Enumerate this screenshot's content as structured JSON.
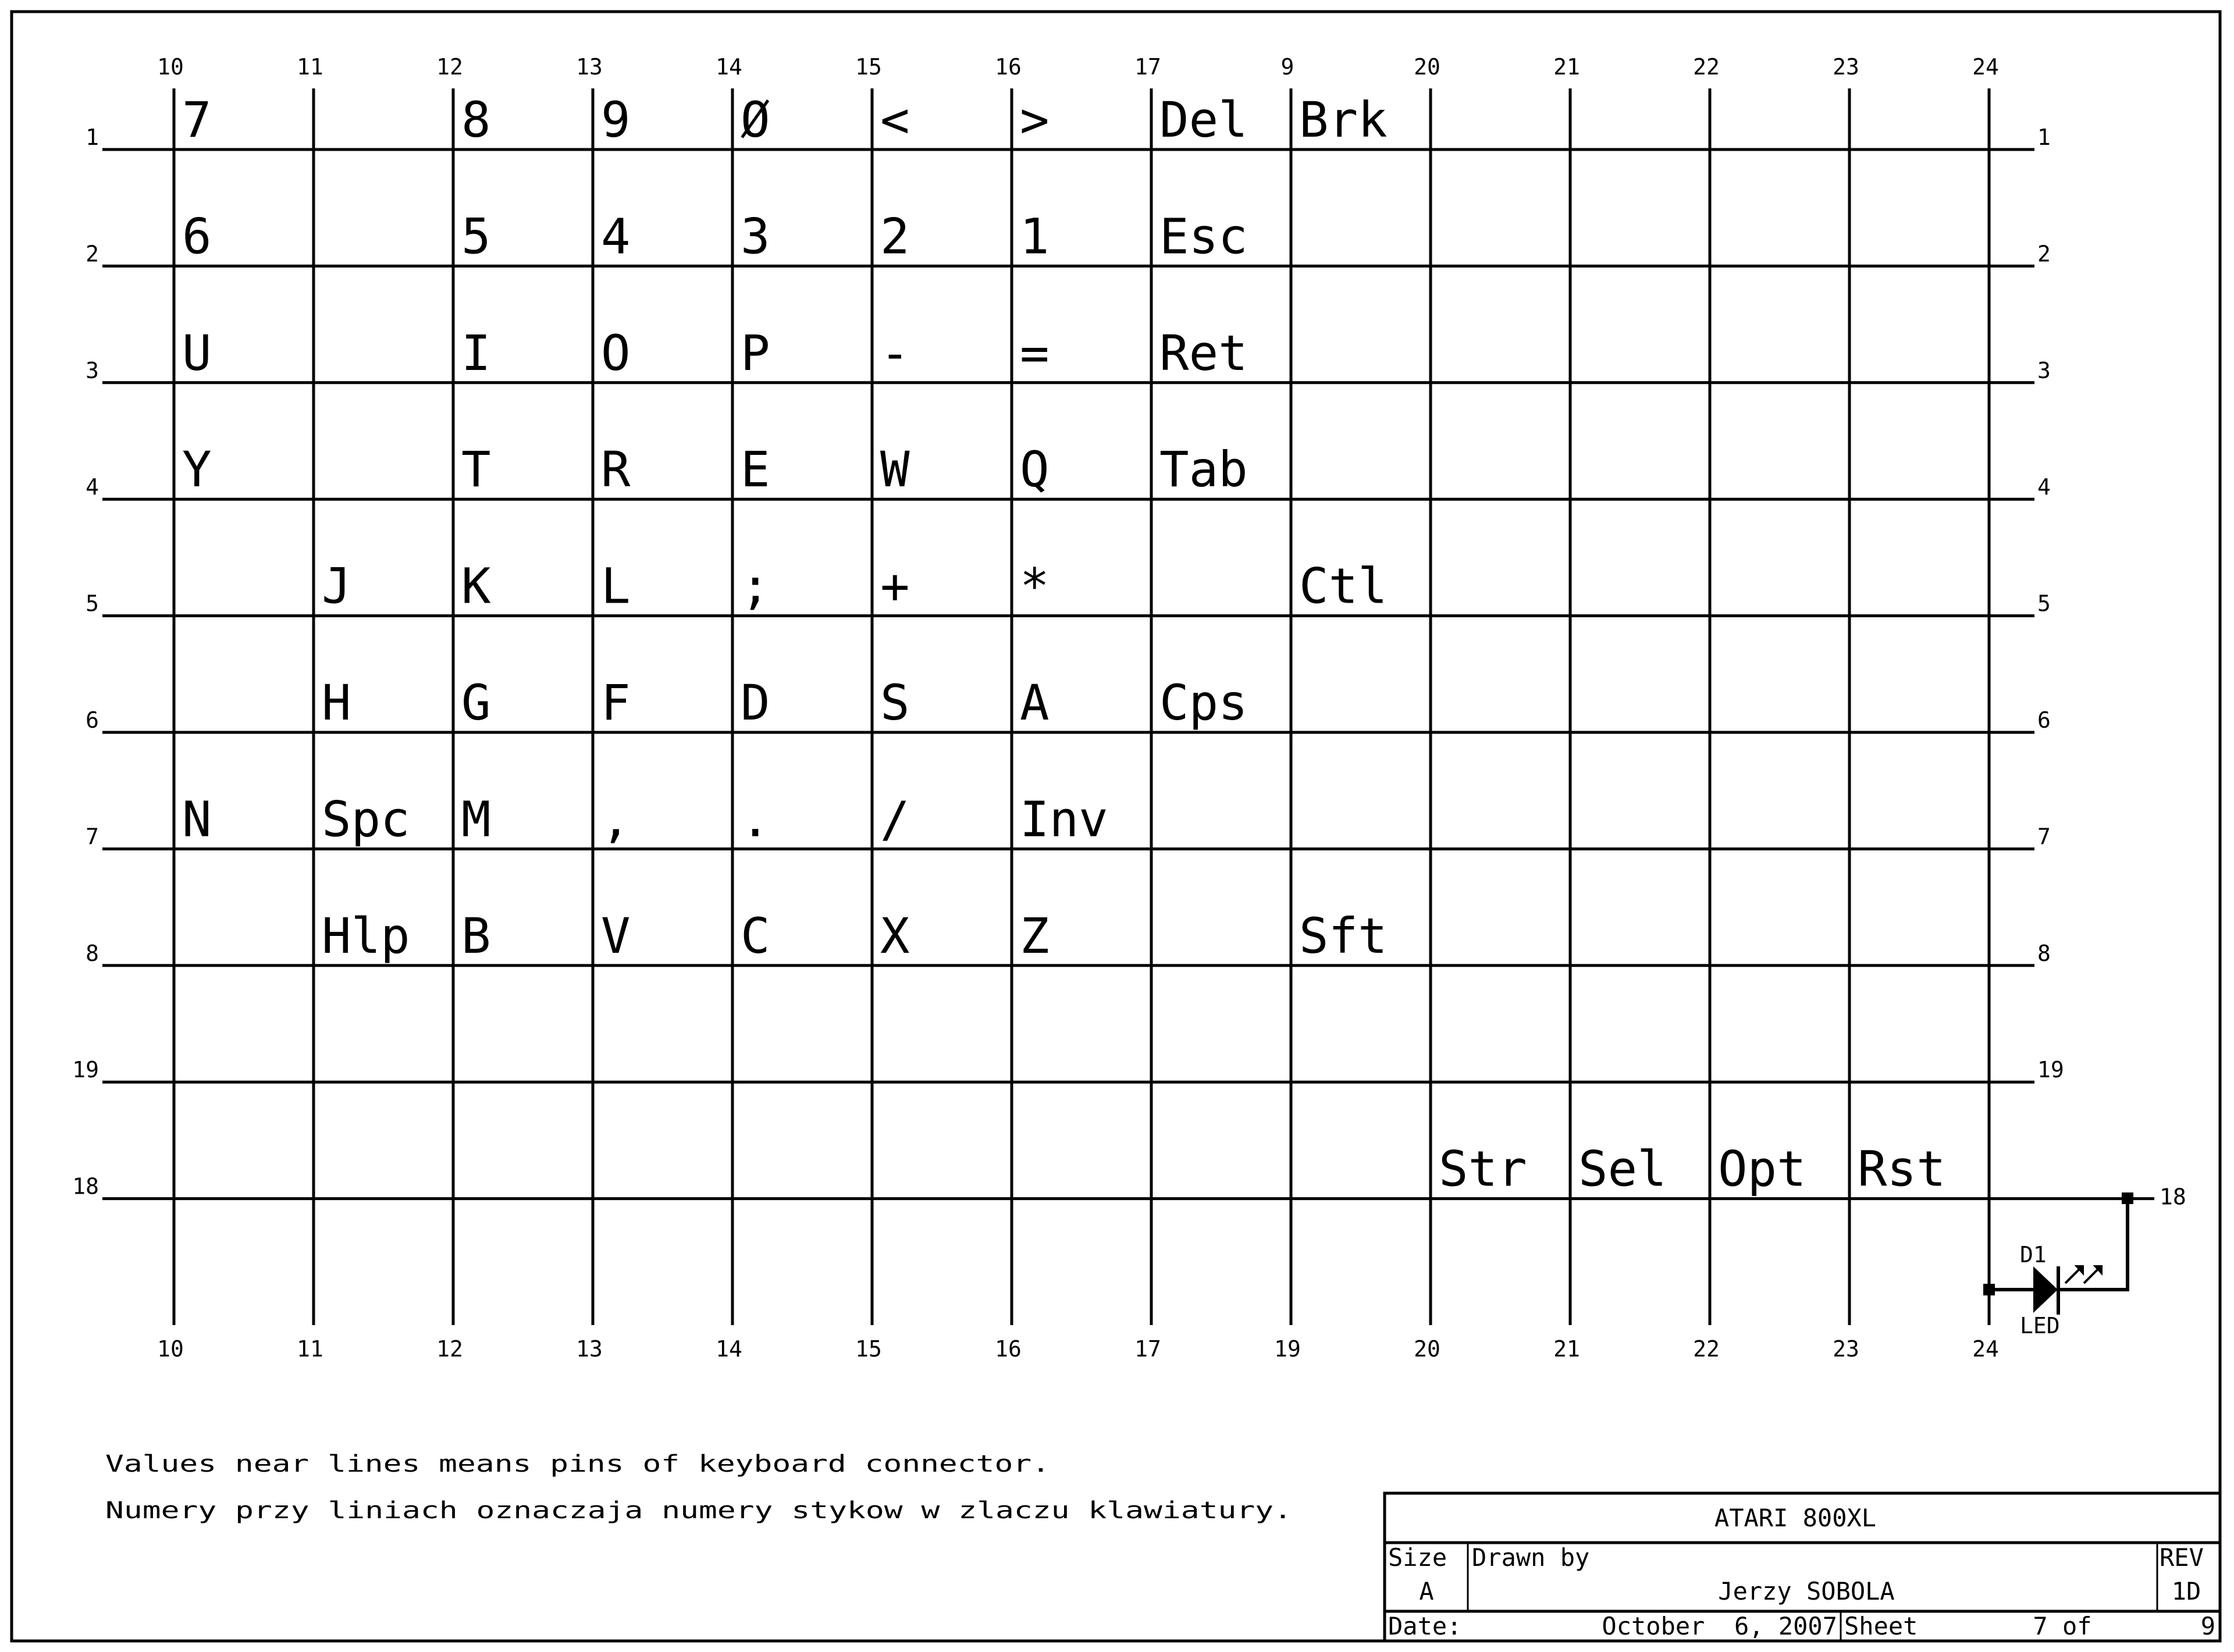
{
  "colors": {
    "ink": "#000000",
    "paper": "#ffffff"
  },
  "columns_top": [
    "10",
    "11",
    "12",
    "13",
    "14",
    "15",
    "16",
    "17",
    "9",
    "20",
    "21",
    "22",
    "23",
    "24"
  ],
  "columns_bottom": [
    "10",
    "11",
    "12",
    "13",
    "14",
    "15",
    "16",
    "17",
    "19",
    "20",
    "21",
    "22",
    "23",
    "24"
  ],
  "rows": [
    "1",
    "2",
    "3",
    "4",
    "5",
    "6",
    "7",
    "8",
    "19",
    "18"
  ],
  "keys": [
    [
      "7",
      "",
      "8",
      "9",
      "Ø",
      "<",
      ">",
      "Del",
      "Brk",
      "",
      "",
      "",
      "",
      ""
    ],
    [
      "6",
      "",
      "5",
      "4",
      "3",
      "2",
      "1",
      "Esc",
      "",
      "",
      "",
      "",
      "",
      ""
    ],
    [
      "U",
      "",
      "I",
      "O",
      "P",
      "-",
      "=",
      "Ret",
      "",
      "",
      "",
      "",
      "",
      ""
    ],
    [
      "Y",
      "",
      "T",
      "R",
      "E",
      "W",
      "Q",
      "Tab",
      "",
      "",
      "",
      "",
      "",
      ""
    ],
    [
      "",
      "J",
      "K",
      "L",
      ";",
      "+",
      "*",
      "",
      "Ctl",
      "",
      "",
      "",
      "",
      ""
    ],
    [
      "",
      "H",
      "G",
      "F",
      "D",
      "S",
      "A",
      "Cps",
      "",
      "",
      "",
      "",
      "",
      ""
    ],
    [
      "N",
      "Spc",
      "M",
      ",",
      ".",
      "/",
      "Inv",
      "",
      "",
      "",
      "",
      "",
      "",
      ""
    ],
    [
      "",
      "Hlp",
      "B",
      "V",
      "C",
      "X",
      "Z",
      "",
      "Sft",
      "",
      "",
      "",
      "",
      ""
    ],
    [
      "",
      "",
      "",
      "",
      "",
      "",
      "",
      "",
      "",
      "",
      "",
      "",
      "",
      ""
    ],
    [
      "",
      "",
      "",
      "",
      "",
      "",
      "",
      "",
      "",
      "Str",
      "Sel",
      "Opt",
      "Rst",
      ""
    ]
  ],
  "led": {
    "designator": "D1",
    "value": "LED",
    "icon": "led-diode-icon"
  },
  "notes": [
    "Values near lines means pins of keyboard connector.",
    "Numery przy liniach oznaczaja numery stykow w zlaczu klawiatury."
  ],
  "title_block": {
    "title": "ATARI 800XL",
    "size_label": "Size",
    "size_value": "A",
    "drawn_by_label": "Drawn by",
    "drawn_by_value": "Jerzy SOBOLA",
    "rev_label": "REV",
    "rev_value": "1D",
    "date_label": "Date:",
    "date_value": "October  6, 2007",
    "sheet_label": "Sheet",
    "sheet_value": "7 of",
    "sheet_total": "9"
  }
}
